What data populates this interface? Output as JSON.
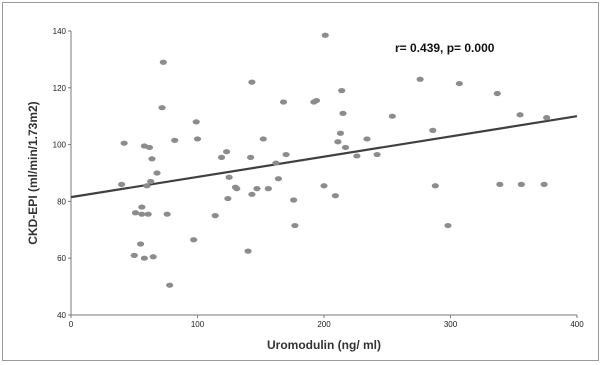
{
  "chart_data": {
    "type": "scatter",
    "title": "",
    "xlabel": "Uromodulin (ng/ ml)",
    "ylabel": "CKD-EPI (ml/min/1.73m2)",
    "annotation": "r= 0.439, p= 0.000",
    "xlim": [
      0,
      400
    ],
    "ylim": [
      40,
      140
    ],
    "xticks": [
      "0",
      "100",
      "200",
      "300",
      "400"
    ],
    "yticks": [
      "40",
      "60",
      "80",
      "100",
      "120",
      "140"
    ],
    "grid": false,
    "legend": "none",
    "point_color": "#8c8c8c",
    "line_color": "#404040",
    "trendline": {
      "x": [
        0,
        400
      ],
      "y": [
        81.5,
        110
      ]
    },
    "points": [
      {
        "x": 40,
        "y": 86
      },
      {
        "x": 42,
        "y": 100.5
      },
      {
        "x": 50,
        "y": 61
      },
      {
        "x": 51,
        "y": 76
      },
      {
        "x": 55,
        "y": 65
      },
      {
        "x": 56,
        "y": 78
      },
      {
        "x": 56,
        "y": 75.5
      },
      {
        "x": 58,
        "y": 99.5
      },
      {
        "x": 58,
        "y": 60
      },
      {
        "x": 60,
        "y": 85.5
      },
      {
        "x": 61,
        "y": 75.5
      },
      {
        "x": 62,
        "y": 99
      },
      {
        "x": 63,
        "y": 87
      },
      {
        "x": 64,
        "y": 95
      },
      {
        "x": 65,
        "y": 60.5
      },
      {
        "x": 68,
        "y": 90
      },
      {
        "x": 72,
        "y": 113
      },
      {
        "x": 73,
        "y": 129
      },
      {
        "x": 76,
        "y": 75.5
      },
      {
        "x": 78,
        "y": 50.5
      },
      {
        "x": 82,
        "y": 101.5
      },
      {
        "x": 97,
        "y": 66.5
      },
      {
        "x": 99,
        "y": 108
      },
      {
        "x": 100,
        "y": 102
      },
      {
        "x": 114,
        "y": 75
      },
      {
        "x": 119,
        "y": 95.5
      },
      {
        "x": 123,
        "y": 97.5
      },
      {
        "x": 124,
        "y": 81
      },
      {
        "x": 125,
        "y": 88.5
      },
      {
        "x": 130,
        "y": 85
      },
      {
        "x": 131,
        "y": 84.5
      },
      {
        "x": 140,
        "y": 62.5
      },
      {
        "x": 142,
        "y": 95.5
      },
      {
        "x": 143,
        "y": 122
      },
      {
        "x": 143,
        "y": 82.5
      },
      {
        "x": 147,
        "y": 84.5
      },
      {
        "x": 152,
        "y": 102
      },
      {
        "x": 156,
        "y": 84.5
      },
      {
        "x": 162,
        "y": 93.5
      },
      {
        "x": 164,
        "y": 88
      },
      {
        "x": 168,
        "y": 115
      },
      {
        "x": 170,
        "y": 96.5
      },
      {
        "x": 176,
        "y": 80.5
      },
      {
        "x": 177,
        "y": 71.5
      },
      {
        "x": 192,
        "y": 115
      },
      {
        "x": 194,
        "y": 115.5
      },
      {
        "x": 200,
        "y": 85.5
      },
      {
        "x": 201,
        "y": 138.5
      },
      {
        "x": 209,
        "y": 82
      },
      {
        "x": 211,
        "y": 101
      },
      {
        "x": 213,
        "y": 104
      },
      {
        "x": 214,
        "y": 119
      },
      {
        "x": 215,
        "y": 111
      },
      {
        "x": 217,
        "y": 99
      },
      {
        "x": 226,
        "y": 96
      },
      {
        "x": 234,
        "y": 102
      },
      {
        "x": 242,
        "y": 96.5
      },
      {
        "x": 254,
        "y": 110
      },
      {
        "x": 276,
        "y": 123
      },
      {
        "x": 286,
        "y": 105
      },
      {
        "x": 288,
        "y": 85.5
      },
      {
        "x": 298,
        "y": 71.5
      },
      {
        "x": 307,
        "y": 121.5
      },
      {
        "x": 337,
        "y": 118
      },
      {
        "x": 339,
        "y": 86
      },
      {
        "x": 355,
        "y": 110.5
      },
      {
        "x": 356,
        "y": 86
      },
      {
        "x": 374,
        "y": 86
      },
      {
        "x": 376,
        "y": 109.5
      }
    ]
  }
}
